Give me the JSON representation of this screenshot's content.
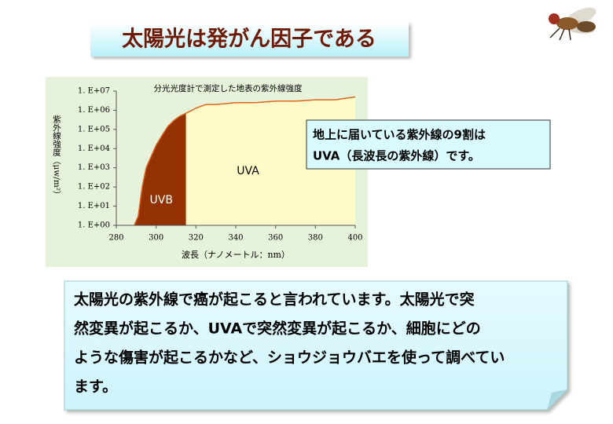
{
  "title": "太陽光は発がん因子である",
  "callout": {
    "lines": [
      "地上に届いている紫外線の9割は",
      "UVA（長波長の紫外線）です。"
    ]
  },
  "body": {
    "lines": [
      "太陽光の紫外線で癌が起こると言われています。太陽光で突",
      "然変異が起こるか、UVAで突然変異が起こるか、細胞にどの",
      "ような傷害が起こるかなど、ショウジョウバエを使って調べてい",
      "ます。"
    ]
  },
  "chart_data": {
    "type": "area",
    "title": "分光光度計で測定した地表の紫外線強度",
    "x_label": "波長（ナノメートル：nm）",
    "y_label": "紫外線強度（μw/m²）",
    "log_y": true,
    "xlim": [
      280,
      400
    ],
    "xticks": [
      280,
      300,
      320,
      340,
      360,
      380,
      400
    ],
    "ylim": [
      1,
      10000000
    ],
    "yticks": [
      {
        "value": 1,
        "label": "1. E+00"
      },
      {
        "value": 10,
        "label": "1. E+01"
      },
      {
        "value": 100,
        "label": "1. E+02"
      },
      {
        "value": 1000,
        "label": "1. E+03"
      },
      {
        "value": 10000,
        "label": "1. E+04"
      },
      {
        "value": 100000,
        "label": "1. E+05"
      },
      {
        "value": 1000000,
        "label": "1. E+06"
      },
      {
        "value": 10000000,
        "label": "1. E+07"
      }
    ],
    "x": [
      289,
      291,
      293,
      295,
      297,
      300,
      303,
      306,
      309,
      312,
      315,
      318,
      320,
      325,
      330,
      340,
      350,
      360,
      370,
      380,
      390,
      400
    ],
    "series": [
      {
        "color": "#e0641a",
        "values": [
          1,
          3,
          100,
          1000,
          3000,
          15000,
          50000,
          150000,
          300000,
          500000,
          700000,
          1000000,
          1300000,
          2000000,
          2000000,
          2500000,
          2500000,
          3000000,
          3000000,
          3500000,
          3500000,
          5000000
        ]
      }
    ],
    "regions": [
      {
        "name": "UVB",
        "range": [
          289,
          315
        ],
        "color": "#933100",
        "text_color": "#ffffff"
      },
      {
        "name": "UVA",
        "range": [
          315,
          400
        ],
        "color": "#fffbc8",
        "text_color": "#000000"
      }
    ]
  }
}
